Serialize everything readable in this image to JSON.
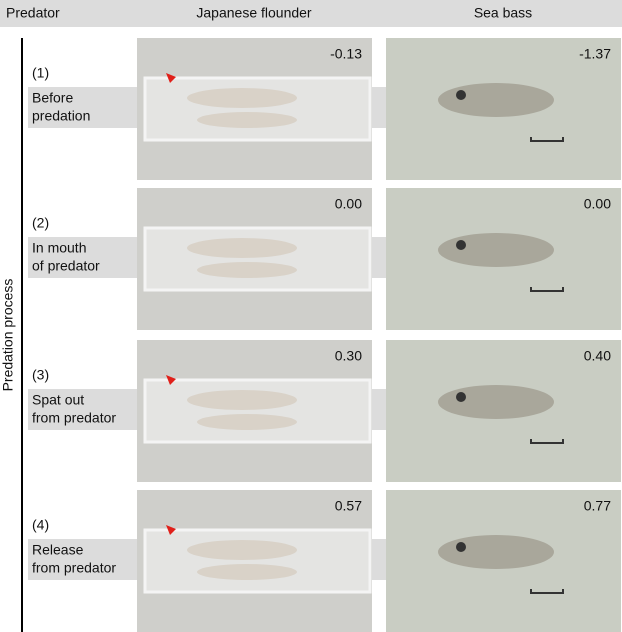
{
  "header": {
    "predator": "Predator",
    "col1": "Japanese flounder",
    "col2": "Sea bass"
  },
  "side_label": "Predation process",
  "rows": [
    {
      "number": "(1)",
      "label": [
        "Before",
        "predation"
      ],
      "times": [
        "-0.13",
        "-1.37"
      ]
    },
    {
      "number": "(2)",
      "label": [
        "In mouth",
        "of predator"
      ],
      "times": [
        "0.00",
        "0.00"
      ]
    },
    {
      "number": "(3)",
      "label": [
        "Spat out",
        "from predator"
      ],
      "times": [
        "0.30",
        "0.40"
      ]
    },
    {
      "number": "(4)",
      "label": [
        "Release",
        "from predator"
      ],
      "times": [
        "0.57",
        "0.77"
      ]
    }
  ]
}
